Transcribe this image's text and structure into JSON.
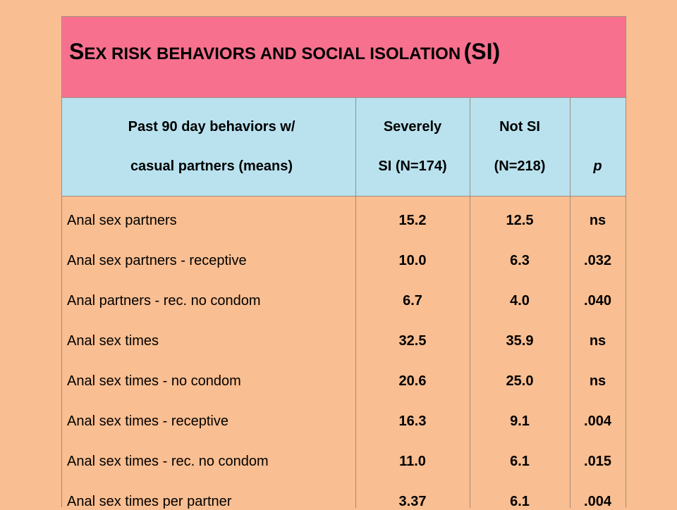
{
  "title": {
    "part1_cap": "S",
    "part1_rest": "EX RISK BEHAVIORS AND SOCIAL ISOLATION",
    "part2": "(SI)"
  },
  "header": {
    "col1_line1": "Past 90 day behaviors w/",
    "col1_line2": "casual partners (means)",
    "col2_line1": "Severely",
    "col2_line2": "SI (N=174)",
    "col3_line1": "Not SI",
    "col3_line2": "(N=218)",
    "col4_line2": "p"
  },
  "rows": [
    {
      "label": "Anal sex partners",
      "severe": "15.2",
      "not_si": "12.5",
      "p": "ns"
    },
    {
      "label": "Anal sex partners - receptive",
      "severe": "10.0",
      "not_si": "6.3",
      "p": ".032"
    },
    {
      "label": "Anal partners - rec. no condom",
      "severe": "6.7",
      "not_si": "4.0",
      "p": ".040"
    },
    {
      "label": "Anal sex times",
      "severe": "32.5",
      "not_si": "35.9",
      "p": "ns"
    },
    {
      "label": "Anal sex times - no condom",
      "severe": "20.6",
      "not_si": "25.0",
      "p": "ns"
    },
    {
      "label": "Anal sex times - receptive",
      "severe": "16.3",
      "not_si": "9.1",
      "p": ".004"
    },
    {
      "label": "Anal sex times - rec. no condom",
      "severe": "11.0",
      "not_si": "6.1",
      "p": ".015"
    },
    {
      "label": "Anal sex times per partner",
      "severe": "3.37",
      "not_si": "6.1",
      "p": ".004"
    }
  ]
}
